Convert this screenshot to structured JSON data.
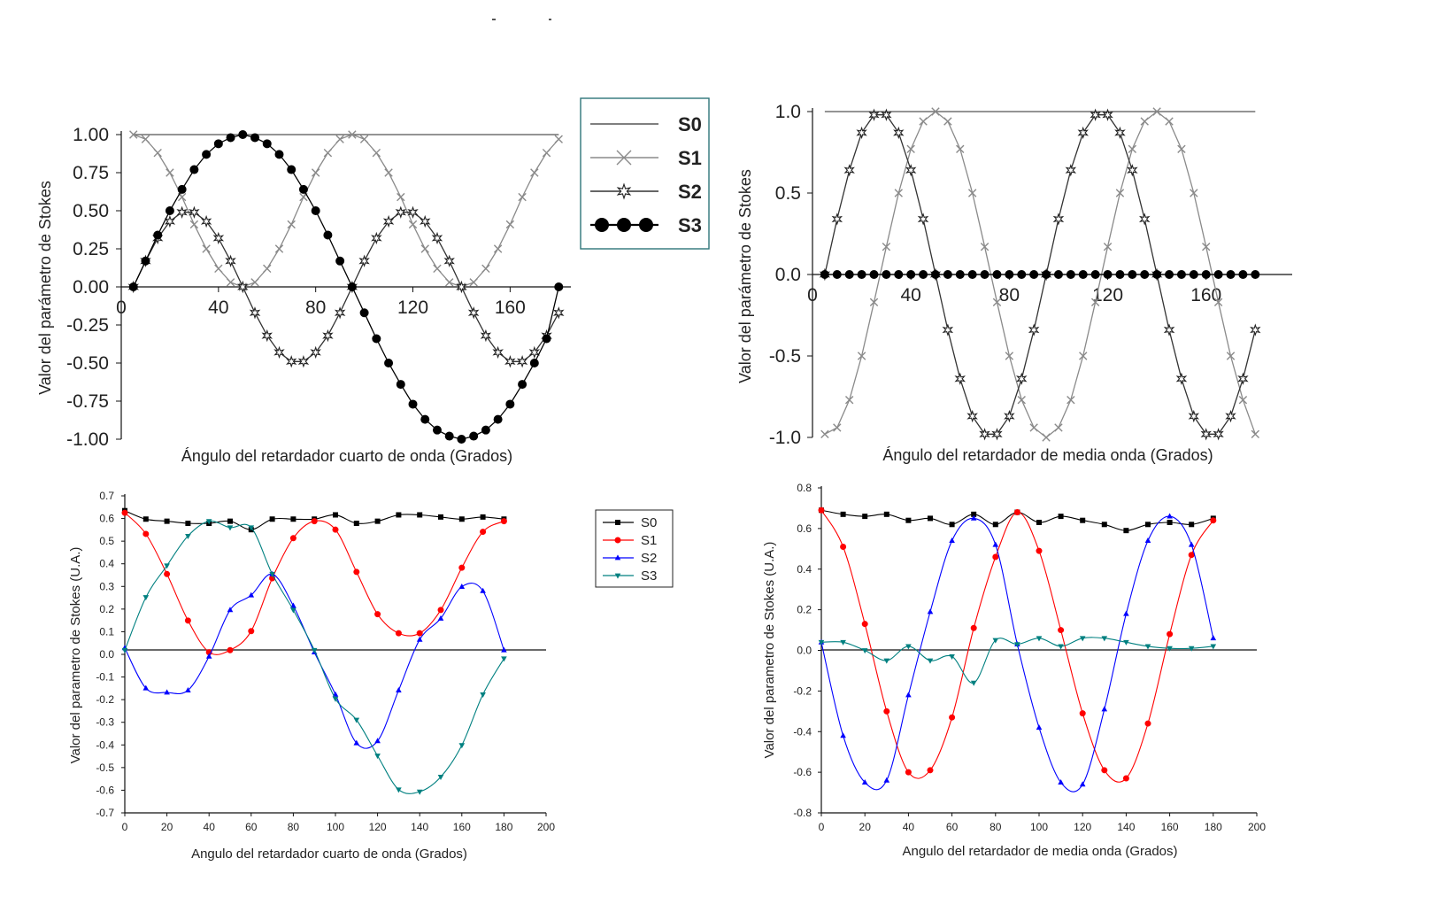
{
  "legend_top": {
    "entries": [
      {
        "label": "S0",
        "marker": "none"
      },
      {
        "label": "S1",
        "marker": "x"
      },
      {
        "label": "S2",
        "marker": "star"
      },
      {
        "label": "S3",
        "marker": "circle"
      }
    ],
    "border_color": "#2e7479"
  },
  "legend_bottom": {
    "entries": [
      {
        "label": "S0",
        "color": "#000000",
        "marker": "square"
      },
      {
        "label": "S1",
        "color": "#ff0000",
        "marker": "circle"
      },
      {
        "label": "S2",
        "color": "#0000ff",
        "marker": "triangle-up"
      },
      {
        "label": "S3",
        "color": "#008080",
        "marker": "triangle-down"
      }
    ]
  },
  "chart_data": [
    {
      "type": "line",
      "xlabel": "Ángulo del retardador cuarto de onda (Grados)",
      "ylabel": "Valor del parámetro de Stokes",
      "xlim": [
        0,
        185
      ],
      "ylim": [
        -1.0,
        1.0
      ],
      "xticks": [
        "0",
        "40",
        "80",
        "120",
        "160"
      ],
      "yticks": [
        "1.00",
        "0.75",
        "0.50",
        "0.25",
        "0.00",
        "-0.25",
        "-0.50",
        "-0.75",
        "-1.00"
      ],
      "x_range": [
        5,
        180
      ],
      "x_step": 5,
      "series": [
        {
          "name": "S0",
          "marker": "none",
          "color": "#555555",
          "x": [
            5,
            180
          ],
          "y": [
            1.0,
            1.0
          ]
        },
        {
          "name": "S1",
          "marker": "x",
          "color": "#8a8a8a",
          "x": [
            5,
            10,
            15,
            20,
            25,
            30,
            35,
            40,
            45,
            50,
            55,
            60,
            65,
            70,
            75,
            80,
            85,
            90,
            95,
            100,
            105,
            110,
            115,
            120,
            125,
            130,
            135,
            140,
            145,
            150,
            155,
            160,
            165,
            170,
            175,
            180
          ],
          "y": [
            1.0,
            0.97,
            0.88,
            0.75,
            0.59,
            0.41,
            0.25,
            0.12,
            0.03,
            0.0,
            0.03,
            0.12,
            0.25,
            0.41,
            0.59,
            0.75,
            0.88,
            0.97,
            1.0,
            0.97,
            0.88,
            0.75,
            0.59,
            0.41,
            0.25,
            0.12,
            0.03,
            0.0,
            0.03,
            0.12,
            0.25,
            0.41,
            0.59,
            0.75,
            0.88,
            0.97
          ]
        },
        {
          "name": "S2",
          "marker": "star",
          "color": "#333333",
          "x": [
            5,
            10,
            15,
            20,
            25,
            30,
            35,
            40,
            45,
            50,
            55,
            60,
            65,
            70,
            75,
            80,
            85,
            90,
            95,
            100,
            105,
            110,
            115,
            120,
            125,
            130,
            135,
            140,
            145,
            150,
            155,
            160,
            165,
            170,
            175,
            180
          ],
          "y": [
            0.0,
            0.17,
            0.32,
            0.43,
            0.49,
            0.49,
            0.43,
            0.32,
            0.17,
            0.0,
            -0.17,
            -0.32,
            -0.43,
            -0.49,
            -0.49,
            -0.43,
            -0.32,
            -0.17,
            0.0,
            0.17,
            0.32,
            0.43,
            0.49,
            0.49,
            0.43,
            0.32,
            0.17,
            0.0,
            -0.17,
            -0.32,
            -0.43,
            -0.49,
            -0.49,
            -0.43,
            -0.32,
            -0.17
          ]
        },
        {
          "name": "S3",
          "marker": "circle",
          "color": "#000000",
          "x": [
            5,
            10,
            15,
            20,
            25,
            30,
            35,
            40,
            45,
            50,
            55,
            60,
            65,
            70,
            75,
            80,
            85,
            90,
            95,
            100,
            105,
            110,
            115,
            120,
            125,
            130,
            135,
            140,
            145,
            150,
            155,
            160,
            165,
            170,
            175,
            180
          ],
          "y": [
            0.0,
            0.17,
            0.34,
            0.5,
            0.64,
            0.77,
            0.87,
            0.94,
            0.98,
            1.0,
            0.98,
            0.94,
            0.87,
            0.77,
            0.64,
            0.5,
            0.34,
            0.17,
            0.0,
            -0.17,
            -0.34,
            -0.5,
            -0.64,
            -0.77,
            -0.87,
            -0.94,
            -0.98,
            -1.0,
            -0.98,
            -0.94,
            -0.87,
            -0.77,
            -0.64,
            -0.5,
            -0.34,
            0.0
          ]
        }
      ]
    },
    {
      "type": "line",
      "xlabel": "Ángulo del retardador de media onda (Grados)",
      "ylabel": "Valor del parámetro de Stokes",
      "xlim": [
        0,
        195
      ],
      "ylim": [
        -1.0,
        1.0
      ],
      "xticks": [
        "0",
        "40",
        "80",
        "120",
        "160"
      ],
      "yticks": [
        "1.0",
        "0.5",
        "0.0",
        "-0.5",
        "-1.0"
      ],
      "series": [
        {
          "name": "S0",
          "marker": "none",
          "color": "#555555",
          "x": [
            5,
            180
          ],
          "y": [
            1.0,
            1.0
          ]
        },
        {
          "name": "S1",
          "marker": "x",
          "color": "#8a8a8a",
          "x": [
            5,
            10,
            15,
            20,
            25,
            30,
            35,
            40,
            45,
            50,
            55,
            60,
            65,
            70,
            75,
            80,
            85,
            90,
            95,
            100,
            105,
            110,
            115,
            120,
            125,
            130,
            135,
            140,
            145,
            150,
            155,
            160,
            165,
            170,
            175,
            180
          ],
          "y": [
            -0.98,
            -0.94,
            -0.77,
            -0.5,
            -0.17,
            0.17,
            0.5,
            0.77,
            0.94,
            1.0,
            0.94,
            0.77,
            0.5,
            0.17,
            -0.17,
            -0.5,
            -0.77,
            -0.94,
            -1.0,
            -0.94,
            -0.77,
            -0.5,
            -0.17,
            0.17,
            0.5,
            0.77,
            0.94,
            1.0,
            0.94,
            0.77,
            0.5,
            0.17,
            -0.17,
            -0.5,
            -0.77,
            -0.98
          ]
        },
        {
          "name": "S2",
          "marker": "star",
          "color": "#333333",
          "x": [
            5,
            10,
            15,
            20,
            25,
            30,
            35,
            40,
            45,
            50,
            55,
            60,
            65,
            70,
            75,
            80,
            85,
            90,
            95,
            100,
            105,
            110,
            115,
            120,
            125,
            130,
            135,
            140,
            145,
            150,
            155,
            160,
            165,
            170,
            175,
            180
          ],
          "y": [
            0.0,
            0.34,
            0.64,
            0.87,
            0.98,
            0.98,
            0.87,
            0.64,
            0.34,
            0.0,
            -0.34,
            -0.64,
            -0.87,
            -0.98,
            -0.98,
            -0.87,
            -0.64,
            -0.34,
            0.0,
            0.34,
            0.64,
            0.87,
            0.98,
            0.98,
            0.87,
            0.64,
            0.34,
            0.0,
            -0.34,
            -0.64,
            -0.87,
            -0.98,
            -0.98,
            -0.87,
            -0.64,
            -0.34
          ]
        },
        {
          "name": "S3",
          "marker": "circle",
          "color": "#000000",
          "x": [
            5,
            10,
            15,
            20,
            25,
            30,
            35,
            40,
            45,
            50,
            55,
            60,
            65,
            70,
            75,
            80,
            85,
            90,
            95,
            100,
            105,
            110,
            115,
            120,
            125,
            130,
            135,
            140,
            145,
            150,
            155,
            160,
            165,
            170,
            175,
            180
          ],
          "y": [
            0,
            0,
            0,
            0,
            0,
            0,
            0,
            0,
            0,
            0,
            0,
            0,
            0,
            0,
            0,
            0,
            0,
            0,
            0,
            0,
            0,
            0,
            0,
            0,
            0,
            0,
            0,
            0,
            0,
            0,
            0,
            0,
            0,
            0,
            0,
            0
          ]
        }
      ]
    },
    {
      "type": "line",
      "xlabel": "Angulo del retardador cuarto de onda  (Grados)",
      "ylabel": "Valor del parametro de Stokes (U.A.)",
      "xlim": [
        0,
        200
      ],
      "ylim": [
        -0.75,
        0.75
      ],
      "xticks": [
        "0",
        "20",
        "40",
        "60",
        "80",
        "100",
        "120",
        "140",
        "160",
        "180",
        "200"
      ],
      "yticks": [
        "0.7",
        "0.6",
        "0.5",
        "0.4",
        "0.3",
        "0.2",
        "0.1",
        "0.0",
        "-0.1",
        "-0.2",
        "-0.3",
        "-0.4",
        "-0.5",
        "-0.6",
        "-0.7"
      ],
      "series": [
        {
          "name": "S0",
          "color": "#000000",
          "marker": "square",
          "x": [
            0,
            10,
            20,
            30,
            40,
            50,
            60,
            70,
            80,
            90,
            100,
            110,
            120,
            130,
            140,
            150,
            160,
            170,
            180
          ],
          "y": [
            0.68,
            0.64,
            0.63,
            0.62,
            0.62,
            0.63,
            0.59,
            0.64,
            0.64,
            0.64,
            0.66,
            0.62,
            0.63,
            0.66,
            0.66,
            0.65,
            0.64,
            0.65,
            0.64
          ]
        },
        {
          "name": "S1",
          "color": "#ff0000",
          "marker": "circle",
          "x": [
            0,
            10,
            20,
            30,
            40,
            50,
            60,
            70,
            80,
            90,
            100,
            110,
            120,
            130,
            140,
            150,
            160,
            170,
            180
          ],
          "y": [
            0.67,
            0.57,
            0.38,
            0.16,
            0.01,
            0.02,
            0.11,
            0.36,
            0.55,
            0.63,
            0.59,
            0.39,
            0.19,
            0.1,
            0.1,
            0.21,
            0.41,
            0.58,
            0.63
          ]
        },
        {
          "name": "S2",
          "color": "#0000ff",
          "marker": "triangle-up",
          "x": [
            0,
            10,
            20,
            30,
            40,
            50,
            60,
            70,
            80,
            90,
            100,
            110,
            120,
            130,
            140,
            150,
            160,
            170,
            180
          ],
          "y": [
            0.03,
            -0.16,
            -0.18,
            -0.17,
            -0.01,
            0.21,
            0.28,
            0.38,
            0.23,
            0.01,
            -0.19,
            -0.42,
            -0.41,
            -0.17,
            0.07,
            0.17,
            0.32,
            0.3,
            0.02
          ]
        },
        {
          "name": "S3",
          "color": "#008080",
          "marker": "triangle-down",
          "x": [
            0,
            10,
            20,
            30,
            40,
            50,
            60,
            70,
            80,
            90,
            100,
            110,
            120,
            130,
            140,
            150,
            160,
            170,
            180
          ],
          "y": [
            0.02,
            0.27,
            0.42,
            0.56,
            0.63,
            0.6,
            0.6,
            0.38,
            0.21,
            0.02,
            -0.21,
            -0.31,
            -0.48,
            -0.64,
            -0.65,
            -0.58,
            -0.43,
            -0.19,
            -0.02
          ]
        }
      ]
    },
    {
      "type": "line",
      "xlabel": "Angulo del retardador de media onda (Grados)",
      "ylabel": "Valor del parametro de Stokes (U.A.)",
      "xlim": [
        0,
        200
      ],
      "ylim": [
        -0.8,
        0.8
      ],
      "xticks": [
        "0",
        "20",
        "40",
        "60",
        "80",
        "100",
        "120",
        "140",
        "160",
        "180",
        "200"
      ],
      "yticks": [
        "0.8",
        "0.6",
        "0.4",
        "0.2",
        "0.0",
        "-0.2",
        "-0.4",
        "-0.6",
        "-0.8"
      ],
      "series": [
        {
          "name": "S0",
          "color": "#000000",
          "marker": "square",
          "x": [
            0,
            10,
            20,
            30,
            40,
            50,
            60,
            70,
            80,
            90,
            100,
            110,
            120,
            130,
            140,
            150,
            160,
            170,
            180
          ],
          "y": [
            0.69,
            0.67,
            0.66,
            0.67,
            0.64,
            0.65,
            0.62,
            0.67,
            0.62,
            0.68,
            0.63,
            0.66,
            0.64,
            0.62,
            0.59,
            0.62,
            0.63,
            0.62,
            0.65
          ]
        },
        {
          "name": "S1",
          "color": "#ff0000",
          "marker": "circle",
          "x": [
            0,
            10,
            20,
            30,
            40,
            50,
            60,
            70,
            80,
            90,
            100,
            110,
            120,
            130,
            140,
            150,
            160,
            170,
            180
          ],
          "y": [
            0.69,
            0.51,
            0.13,
            -0.3,
            -0.6,
            -0.59,
            -0.33,
            0.11,
            0.46,
            0.68,
            0.49,
            0.1,
            -0.31,
            -0.59,
            -0.63,
            -0.36,
            0.08,
            0.47,
            0.64
          ]
        },
        {
          "name": "S2",
          "color": "#0000ff",
          "marker": "triangle-up",
          "x": [
            0,
            10,
            20,
            30,
            40,
            50,
            60,
            70,
            80,
            90,
            100,
            110,
            120,
            130,
            140,
            150,
            160,
            170,
            180
          ],
          "y": [
            0.04,
            -0.42,
            -0.65,
            -0.64,
            -0.22,
            0.19,
            0.54,
            0.65,
            0.52,
            0.03,
            -0.38,
            -0.65,
            -0.66,
            -0.29,
            0.18,
            0.54,
            0.66,
            0.52,
            0.06
          ]
        },
        {
          "name": "S3",
          "color": "#008080",
          "marker": "triangle-down",
          "x": [
            0,
            10,
            20,
            30,
            40,
            50,
            60,
            70,
            80,
            90,
            100,
            110,
            120,
            130,
            140,
            150,
            160,
            170,
            180
          ],
          "y": [
            0.04,
            0.04,
            0.0,
            -0.05,
            0.02,
            -0.05,
            -0.03,
            -0.16,
            0.05,
            0.03,
            0.06,
            0.02,
            0.06,
            0.06,
            0.04,
            0.02,
            0.01,
            0.01,
            0.02
          ]
        }
      ]
    }
  ]
}
